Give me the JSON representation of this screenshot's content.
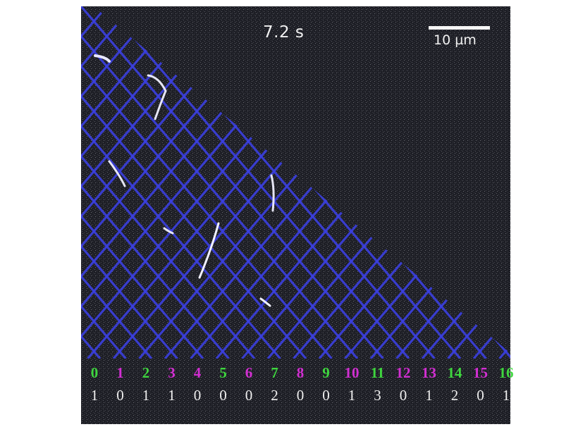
{
  "timestamp": "7.2 s",
  "scale_bar": {
    "label": "10 µm"
  },
  "colors": {
    "background": "#1e1f26",
    "mesh": "#3b3fe0",
    "green_index": "#3fd63f",
    "magenta_index": "#d22fd2",
    "count_text": "#f0f0f0"
  },
  "columns": [
    {
      "index": "0",
      "color": "green",
      "count": "1"
    },
    {
      "index": "1",
      "color": "magenta",
      "count": "0"
    },
    {
      "index": "2",
      "color": "green",
      "count": "1"
    },
    {
      "index": "3",
      "color": "magenta",
      "count": "1"
    },
    {
      "index": "4",
      "color": "magenta",
      "count": "0"
    },
    {
      "index": "5",
      "color": "green",
      "count": "0"
    },
    {
      "index": "6",
      "color": "magenta",
      "count": "0"
    },
    {
      "index": "7",
      "color": "green",
      "count": "2"
    },
    {
      "index": "8",
      "color": "magenta",
      "count": "0"
    },
    {
      "index": "9",
      "color": "green",
      "count": "0"
    },
    {
      "index": "10",
      "color": "magenta",
      "count": "1"
    },
    {
      "index": "11",
      "color": "green",
      "count": "3"
    },
    {
      "index": "12",
      "color": "magenta",
      "count": "0"
    },
    {
      "index": "13",
      "color": "magenta",
      "count": "1"
    },
    {
      "index": "14",
      "color": "green",
      "count": "2"
    },
    {
      "index": "15",
      "color": "magenta",
      "count": "0"
    },
    {
      "index": "16",
      "color": "green",
      "count": "1"
    }
  ]
}
